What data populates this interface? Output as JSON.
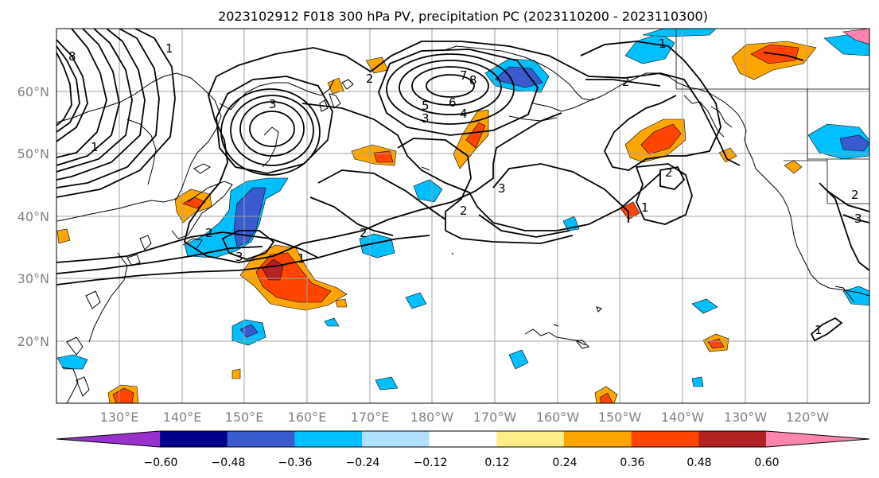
{
  "title": "2023102912 F018 300 hPa PV, precipitation PC (2023110200 - 2023110300)",
  "lat_labels": [
    "60°N",
    "50°N",
    "40°N",
    "30°N",
    "20°N"
  ],
  "lon_labels": [
    "130°E",
    "140°E",
    "150°E",
    "160°E",
    "170°E",
    "180°W",
    "170°W",
    "160°W",
    "150°W",
    "140°W",
    "130°W",
    "120°W"
  ],
  "colorbar": {
    "colors": [
      "#9932cc",
      "#00008b",
      "#3a5bd0",
      "#00bfff",
      "#b0e2ff",
      "#ffffff",
      "#ffee88",
      "#ffa500",
      "#ff4500",
      "#b22222",
      "#ff85b0"
    ],
    "tick_labels": [
      "−0.60",
      "−0.48",
      "−0.36",
      "−0.24",
      "−0.12",
      "0.12",
      "0.24",
      "0.36",
      "0.48",
      "0.60"
    ]
  },
  "contour_labels": [
    "1",
    "2",
    "3",
    "4",
    "5",
    "6",
    "7",
    "8",
    "1",
    "2",
    "3",
    "2",
    "3",
    "1",
    "2",
    "3",
    "2",
    "2",
    "1",
    "1",
    "2",
    "3",
    "1",
    "8"
  ]
}
